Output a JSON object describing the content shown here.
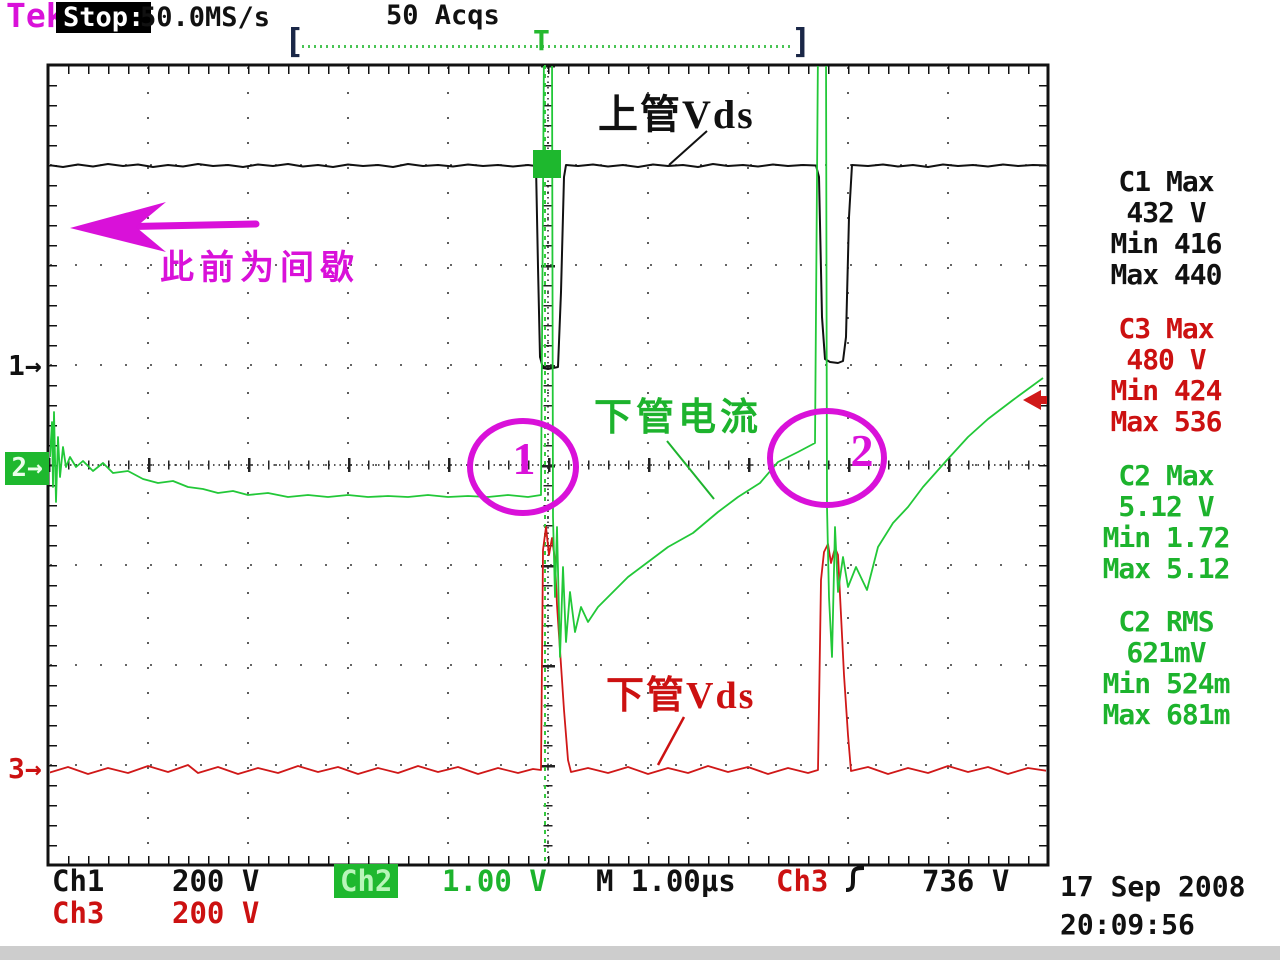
{
  "header": {
    "brand": "Tek",
    "status": "Stop:",
    "sample_rate": "50.0MS/s",
    "acquisitions": "50 Acqs"
  },
  "acq_window": {
    "left_bracket": "[",
    "right_bracket": "]",
    "trigger_marker": "T"
  },
  "left_markers": {
    "ch1": "1→",
    "ch2": "2→",
    "ch3": "3→"
  },
  "annotations": {
    "arrow_text": "此前为间歇",
    "circle1_label": "1",
    "circle2_label": "2",
    "ch1_trace_label": "上管Vds",
    "ch2_trace_label": "下管电流",
    "ch3_trace_label": "下管Vds",
    "accent_color": "#d911d9"
  },
  "icons": {
    "trigger_slope": "rising-edge",
    "trigger_level_arrow": "left-arrow-red",
    "annotation_arrow": "left-arrow-magenta"
  },
  "measurements": [
    {
      "channel": "C1",
      "color": "#111111",
      "lines": [
        "C1 Max",
        "432 V",
        "Min 416",
        "Max 440"
      ]
    },
    {
      "channel": "C3",
      "color": "#cc1111",
      "lines": [
        "C3 Max",
        "480 V",
        "Min 424",
        "Max 536"
      ]
    },
    {
      "channel": "C2",
      "color": "#1db32d",
      "lines": [
        "C2 Max",
        "5.12 V",
        "Min 1.72",
        "Max 5.12"
      ]
    },
    {
      "channel": "C2",
      "color": "#1db32d",
      "lines": [
        "C2 RMS",
        "621mV",
        "Min 524m",
        "Max 681m"
      ]
    }
  ],
  "status_bar": {
    "ch1_label": "Ch1",
    "ch1_scale": "200 V",
    "ch2_label": "Ch2",
    "ch2_scale": "1.00 V",
    "timebase": "M 1.00µs",
    "trigger_source": "Ch3",
    "trigger_level": "736 V",
    "ch3_label": "Ch3",
    "ch3_scale": "200 V",
    "date": "17 Sep 2008",
    "time": "20:09:56"
  },
  "chart_data": {
    "type": "line",
    "title": "",
    "x_units": "µs",
    "x_per_div": 1.0,
    "x_range": [
      0,
      10
    ],
    "divisions": {
      "horizontal": 10,
      "vertical": 8
    },
    "grid": "dotted",
    "channels": [
      {
        "name": "Ch1",
        "label": "上管Vds",
        "color": "#111111",
        "volts_per_div": 200,
        "ground_div": 3.02,
        "points": [
          [
            0,
            404
          ],
          [
            0.15,
            400
          ],
          [
            0.3,
            405
          ],
          [
            0.45,
            401
          ],
          [
            0.6,
            406
          ],
          [
            0.75,
            402
          ],
          [
            0.9,
            405
          ],
          [
            1.05,
            400
          ],
          [
            1.2,
            404
          ],
          [
            1.35,
            401
          ],
          [
            1.5,
            406
          ],
          [
            1.65,
            402
          ],
          [
            1.8,
            404
          ],
          [
            1.95,
            400
          ],
          [
            2.1,
            405
          ],
          [
            2.25,
            402
          ],
          [
            2.4,
            406
          ],
          [
            2.55,
            401
          ],
          [
            2.7,
            404
          ],
          [
            2.85,
            400
          ],
          [
            3.0,
            405
          ],
          [
            3.15,
            402
          ],
          [
            3.3,
            404
          ],
          [
            3.45,
            400
          ],
          [
            3.6,
            406
          ],
          [
            3.75,
            402
          ],
          [
            3.9,
            404
          ],
          [
            4.05,
            401
          ],
          [
            4.2,
            405
          ],
          [
            4.35,
            402
          ],
          [
            4.5,
            404
          ],
          [
            4.65,
            401
          ],
          [
            4.8,
            404
          ],
          [
            4.88,
            402
          ],
          [
            4.9,
            200
          ],
          [
            4.92,
            20
          ],
          [
            4.95,
            -2
          ],
          [
            5.0,
            -4
          ],
          [
            5.05,
            -2
          ],
          [
            5.1,
            0
          ],
          [
            5.13,
            150
          ],
          [
            5.16,
            380
          ],
          [
            5.18,
            404
          ],
          [
            5.3,
            402
          ],
          [
            5.45,
            405
          ],
          [
            5.6,
            401
          ],
          [
            5.75,
            404
          ],
          [
            5.9,
            400
          ],
          [
            6.05,
            405
          ],
          [
            6.2,
            402
          ],
          [
            6.35,
            404
          ],
          [
            6.5,
            400
          ],
          [
            6.65,
            406
          ],
          [
            6.8,
            402
          ],
          [
            6.95,
            404
          ],
          [
            7.1,
            401
          ],
          [
            7.25,
            405
          ],
          [
            7.4,
            402
          ],
          [
            7.55,
            404
          ],
          [
            7.68,
            403
          ],
          [
            7.71,
            380
          ],
          [
            7.74,
            100
          ],
          [
            7.77,
            16
          ],
          [
            7.82,
            10
          ],
          [
            7.9,
            8
          ],
          [
            7.95,
            12
          ],
          [
            7.98,
            60
          ],
          [
            8.01,
            300
          ],
          [
            8.04,
            404
          ],
          [
            8.2,
            402
          ],
          [
            8.35,
            405
          ],
          [
            8.5,
            401
          ],
          [
            8.65,
            404
          ],
          [
            8.8,
            400
          ],
          [
            8.95,
            405
          ],
          [
            9.1,
            402
          ],
          [
            9.25,
            404
          ],
          [
            9.4,
            401
          ],
          [
            9.55,
            405
          ],
          [
            9.7,
            402
          ],
          [
            9.85,
            404
          ],
          [
            10,
            403
          ]
        ]
      },
      {
        "name": "Ch2",
        "label": "下管电流",
        "color": "#22c838",
        "volts_per_div": 1,
        "ground_div": 4.02,
        "points": [
          [
            0.02,
            0.1
          ],
          [
            0.04,
            0.45
          ],
          [
            0.05,
            -0.2
          ],
          [
            0.06,
            0.55
          ],
          [
            0.08,
            -0.35
          ],
          [
            0.1,
            0.3
          ],
          [
            0.12,
            -0.1
          ],
          [
            0.15,
            0.2
          ],
          [
            0.18,
            0.0
          ],
          [
            0.22,
            0.1
          ],
          [
            0.28,
            0.0
          ],
          [
            0.35,
            0.06
          ],
          [
            0.45,
            -0.04
          ],
          [
            0.55,
            0.04
          ],
          [
            0.65,
            -0.06
          ],
          [
            0.8,
            -0.04
          ],
          [
            0.95,
            -0.12
          ],
          [
            1.1,
            -0.16
          ],
          [
            1.25,
            -0.14
          ],
          [
            1.4,
            -0.2
          ],
          [
            1.55,
            -0.22
          ],
          [
            1.7,
            -0.26
          ],
          [
            1.85,
            -0.24
          ],
          [
            2.0,
            -0.28
          ],
          [
            2.2,
            -0.26
          ],
          [
            2.4,
            -0.3
          ],
          [
            2.6,
            -0.28
          ],
          [
            2.8,
            -0.3
          ],
          [
            3.0,
            -0.28
          ],
          [
            3.2,
            -0.3
          ],
          [
            3.4,
            -0.29
          ],
          [
            3.6,
            -0.3
          ],
          [
            3.8,
            -0.28
          ],
          [
            4.0,
            -0.3
          ],
          [
            4.2,
            -0.29
          ],
          [
            4.4,
            -0.3
          ],
          [
            4.6,
            -0.28
          ],
          [
            4.8,
            -0.3
          ],
          [
            4.93,
            -0.28
          ],
          [
            4.96,
            4.2
          ],
          [
            5.04,
            4.2
          ],
          [
            5.05,
            -0.5
          ],
          [
            5.07,
            -1.3
          ],
          [
            5.09,
            -0.6
          ],
          [
            5.12,
            -1.9
          ],
          [
            5.15,
            -1.0
          ],
          [
            5.18,
            -1.75
          ],
          [
            5.22,
            -1.25
          ],
          [
            5.27,
            -1.65
          ],
          [
            5.33,
            -1.4
          ],
          [
            5.4,
            -1.55
          ],
          [
            5.5,
            -1.4
          ],
          [
            5.65,
            -1.25
          ],
          [
            5.8,
            -1.1
          ],
          [
            6.0,
            -0.95
          ],
          [
            6.2,
            -0.8
          ],
          [
            6.45,
            -0.66
          ],
          [
            6.7,
            -0.45
          ],
          [
            6.9,
            -0.3
          ],
          [
            7.12,
            -0.16
          ],
          [
            7.3,
            0.05
          ],
          [
            7.5,
            0.15
          ],
          [
            7.67,
            0.24
          ],
          [
            7.7,
            4.2
          ],
          [
            7.78,
            4.2
          ],
          [
            7.79,
            -0.4
          ],
          [
            7.81,
            -1.3
          ],
          [
            7.84,
            -1.9
          ],
          [
            7.87,
            -0.6
          ],
          [
            7.9,
            -1.25
          ],
          [
            7.95,
            -0.9
          ],
          [
            8.0,
            -1.2
          ],
          [
            8.08,
            -1.0
          ],
          [
            8.19,
            -1.23
          ],
          [
            8.3,
            -0.8
          ],
          [
            8.45,
            -0.56
          ],
          [
            8.6,
            -0.4
          ],
          [
            8.75,
            -0.2
          ],
          [
            8.99,
            0.07
          ],
          [
            9.2,
            0.3
          ],
          [
            9.4,
            0.48
          ],
          [
            9.65,
            0.67
          ],
          [
            9.8,
            0.78
          ],
          [
            9.95,
            0.89
          ]
        ]
      },
      {
        "name": "Ch3",
        "label": "下管Vds",
        "color": "#d01818",
        "volts_per_div": 200,
        "ground_div": 7.05,
        "points": [
          [
            0,
            -6
          ],
          [
            0.2,
            6
          ],
          [
            0.4,
            -8
          ],
          [
            0.6,
            4
          ],
          [
            0.8,
            -6
          ],
          [
            1.0,
            8
          ],
          [
            1.2,
            -4
          ],
          [
            1.4,
            10
          ],
          [
            1.5,
            -6
          ],
          [
            1.7,
            6
          ],
          [
            1.9,
            -8
          ],
          [
            2.1,
            4
          ],
          [
            2.3,
            -6
          ],
          [
            2.5,
            8
          ],
          [
            2.7,
            -4
          ],
          [
            2.9,
            6
          ],
          [
            3.1,
            -8
          ],
          [
            3.3,
            4
          ],
          [
            3.5,
            -6
          ],
          [
            3.7,
            8
          ],
          [
            3.9,
            -4
          ],
          [
            4.1,
            6
          ],
          [
            4.3,
            -8
          ],
          [
            4.5,
            4
          ],
          [
            4.7,
            -6
          ],
          [
            4.85,
            2
          ],
          [
            4.93,
            0
          ],
          [
            4.95,
            440
          ],
          [
            4.98,
            486
          ],
          [
            5.01,
            430
          ],
          [
            5.04,
            464
          ],
          [
            5.07,
            420
          ],
          [
            5.09,
            330
          ],
          [
            5.12,
            240
          ],
          [
            5.16,
            120
          ],
          [
            5.2,
            20
          ],
          [
            5.23,
            -4
          ],
          [
            5.4,
            4
          ],
          [
            5.6,
            -6
          ],
          [
            5.8,
            6
          ],
          [
            6.0,
            -8
          ],
          [
            6.2,
            4
          ],
          [
            6.4,
            -6
          ],
          [
            6.6,
            8
          ],
          [
            6.8,
            -4
          ],
          [
            7.0,
            6
          ],
          [
            7.2,
            -8
          ],
          [
            7.4,
            4
          ],
          [
            7.6,
            -6
          ],
          [
            7.7,
            0
          ],
          [
            7.73,
            380
          ],
          [
            7.76,
            436
          ],
          [
            7.8,
            452
          ],
          [
            7.83,
            414
          ],
          [
            7.87,
            444
          ],
          [
            7.9,
            430
          ],
          [
            7.93,
            310
          ],
          [
            7.96,
            190
          ],
          [
            8.0,
            70
          ],
          [
            8.03,
            -2
          ],
          [
            8.2,
            6
          ],
          [
            8.4,
            -8
          ],
          [
            8.6,
            4
          ],
          [
            8.8,
            -6
          ],
          [
            9.0,
            8
          ],
          [
            9.2,
            -4
          ],
          [
            9.4,
            6
          ],
          [
            9.6,
            -8
          ],
          [
            9.8,
            4
          ],
          [
            10,
            -2
          ]
        ]
      }
    ]
  }
}
